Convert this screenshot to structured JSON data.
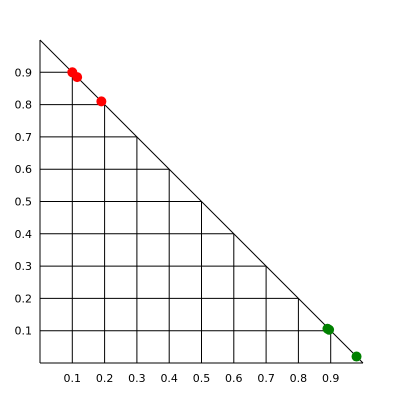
{
  "chart_data": {
    "type": "scatter",
    "title": "",
    "xlabel": "",
    "ylabel": "",
    "xlim": [
      0,
      1
    ],
    "ylim": [
      0,
      1
    ],
    "x_ticks": [
      0.1,
      0.2,
      0.3,
      0.4,
      0.5,
      0.6,
      0.7,
      0.8,
      0.9
    ],
    "y_ticks": [
      0.1,
      0.2,
      0.3,
      0.4,
      0.5,
      0.6,
      0.7,
      0.8,
      0.9
    ],
    "x_tick_labels": [
      "0.1",
      "0.2",
      "0.3",
      "0.4",
      "0.5",
      "0.6",
      "0.7",
      "0.8",
      "0.9"
    ],
    "y_tick_labels": [
      "0.1",
      "0.2",
      "0.3",
      "0.4",
      "0.5",
      "0.6",
      "0.7",
      "0.8",
      "0.9"
    ],
    "grid": "triangular, bounded by the line x + y = 1",
    "legend": "none",
    "series": [
      {
        "color": "#ff0000",
        "points": [
          {
            "x": 0.1,
            "y": 0.9
          },
          {
            "x": 0.115,
            "y": 0.885
          },
          {
            "x": 0.19,
            "y": 0.81
          }
        ]
      },
      {
        "color": "#008000",
        "points": [
          {
            "x": 0.89,
            "y": 0.106
          },
          {
            "x": 0.895,
            "y": 0.103
          },
          {
            "x": 0.98,
            "y": 0.02
          }
        ]
      }
    ]
  }
}
